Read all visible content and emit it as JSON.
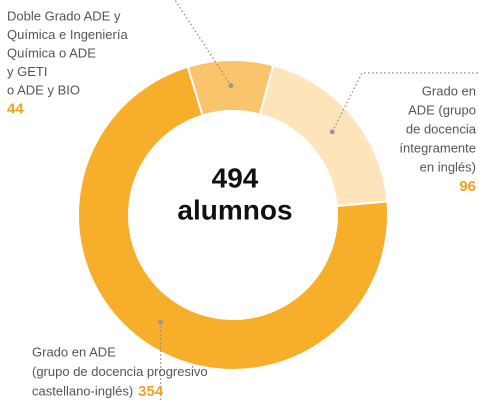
{
  "chart_data": {
    "type": "donut",
    "center_value": 494,
    "center_label": "alumnos",
    "categories": [
      [
        "Doble Grado ADE y",
        "Química e Ingeniería",
        "Química o ADE",
        "y GETI",
        "o ADE y BIO"
      ],
      [
        "Grado en",
        "ADE (grupo",
        "de docencia",
        "íntegramente",
        "en inglés)"
      ],
      [
        "Grado en ADE",
        "(grupo de docencia progresivo",
        "castellano-inglés)"
      ]
    ],
    "values": [
      44,
      96,
      354
    ],
    "colors": [
      "#f9c46b",
      "#fde4ba",
      "#f7ae2a"
    ]
  }
}
